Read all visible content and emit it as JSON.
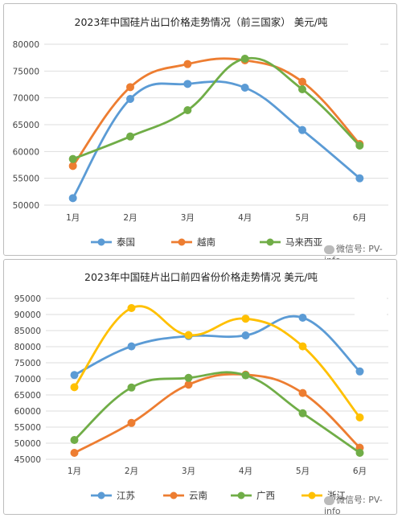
{
  "charts": [
    {
      "panel": "top",
      "title": "2023年中国硅片出口价格走势情况（前三国家）  美元/吨",
      "chart_data": {
        "type": "line",
        "title": "2023年中国硅片出口价格走势情况（前三国家）  美元/吨",
        "categories": [
          "1月",
          "2月",
          "3月",
          "4月",
          "5月",
          "6月"
        ],
        "ylim": [
          50000,
          80000
        ],
        "yticks": [
          50000,
          55000,
          60000,
          65000,
          70000,
          75000,
          80000
        ],
        "grid": true,
        "legend": "bottom",
        "series": [
          {
            "name": "泰国",
            "color": "#5b9bd5",
            "values": [
              51300,
              69800,
              72600,
              71900,
              64000,
              55000
            ]
          },
          {
            "name": "越南",
            "color": "#ed7d31",
            "values": [
              57300,
              72000,
              76300,
              77000,
              73000,
              61400
            ]
          },
          {
            "name": "马来西亚",
            "color": "#70ad47",
            "values": [
              58600,
              62800,
              67700,
              77300,
              71600,
              61100
            ]
          }
        ]
      }
    },
    {
      "panel": "bottom",
      "title": "2023年中国硅片出口前四省份价格走势情况   美元/吨",
      "chart_data": {
        "type": "line",
        "title": "2023年中国硅片出口前四省份价格走势情况   美元/吨",
        "categories": [
          "1月",
          "2月",
          "3月",
          "4月",
          "5月",
          "6月"
        ],
        "ylim": [
          45000,
          95000
        ],
        "yticks": [
          45000,
          50000,
          55000,
          60000,
          65000,
          70000,
          75000,
          80000,
          85000,
          90000,
          95000
        ],
        "grid": true,
        "legend": "bottom",
        "series": [
          {
            "name": "江苏",
            "color": "#5b9bd5",
            "values": [
              71200,
              80100,
              83300,
              83500,
              89000,
              72300
            ]
          },
          {
            "name": "云南",
            "color": "#ed7d31",
            "values": [
              47000,
              56300,
              68200,
              71300,
              65600,
              48600
            ]
          },
          {
            "name": "广西",
            "color": "#70ad47",
            "values": [
              51000,
              67300,
              70300,
              71100,
              59300,
              47000
            ]
          },
          {
            "name": "浙江",
            "color": "#ffc000",
            "values": [
              67400,
              92000,
              83600,
              88700,
              80100,
              58000
            ]
          }
        ]
      }
    }
  ],
  "watermark": {
    "text": "微信号: PV-info"
  }
}
